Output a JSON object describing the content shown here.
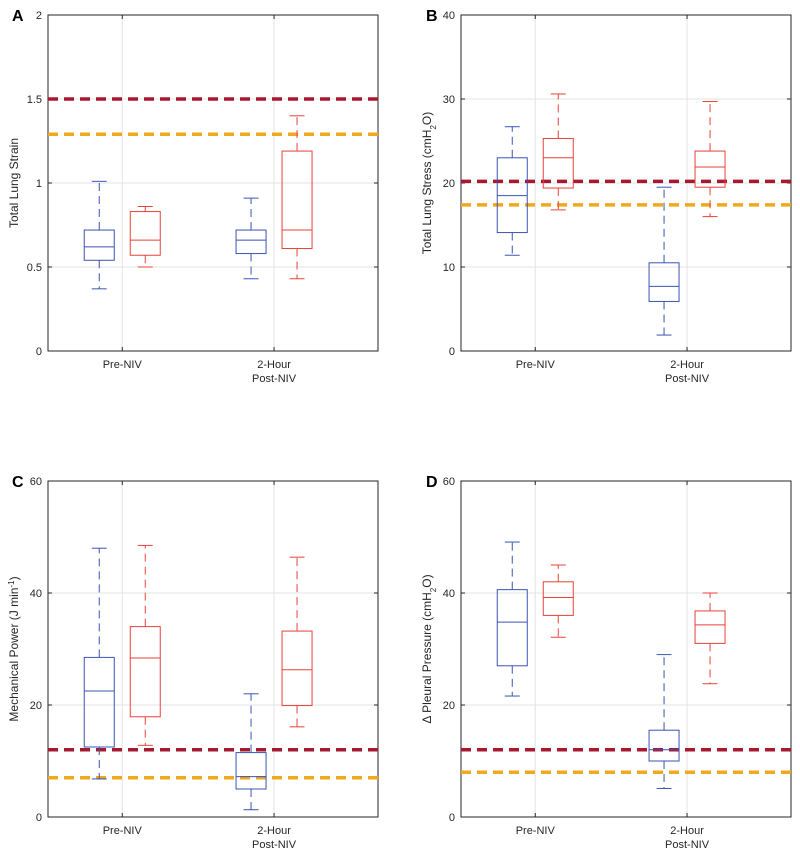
{
  "colors": {
    "series1": "#3a54b4",
    "series2": "#e8423a",
    "ref_high": "#a6192e",
    "ref_low": "#f2a81d",
    "grid": "#e3e3e3",
    "axis": "#262626"
  },
  "chart_data": [
    {
      "panel_label": "A",
      "type": "box",
      "ylabel": "Total Lung Strain",
      "ylim": [
        0,
        2
      ],
      "yticks": [
        "0",
        "0.5",
        "1",
        "1.5",
        "2"
      ],
      "categories": [
        {
          "line1": "Pre-NIV",
          "line2": ""
        },
        {
          "line1": "2-Hour",
          "line2": "Post-NIV"
        }
      ],
      "reference_lines": [
        {
          "value": 1.5,
          "color": "ref_high"
        },
        {
          "value": 1.29,
          "color": "ref_low"
        }
      ],
      "boxes": [
        {
          "cat": 0,
          "series": 1,
          "min": 0.37,
          "q1": 0.54,
          "median": 0.62,
          "q3": 0.72,
          "max": 1.01
        },
        {
          "cat": 0,
          "series": 2,
          "min": 0.5,
          "q1": 0.57,
          "median": 0.66,
          "q3": 0.83,
          "max": 0.86
        },
        {
          "cat": 1,
          "series": 1,
          "min": 0.43,
          "q1": 0.58,
          "median": 0.66,
          "q3": 0.72,
          "max": 0.91
        },
        {
          "cat": 1,
          "series": 2,
          "min": 0.43,
          "q1": 0.61,
          "median": 0.72,
          "q3": 1.19,
          "max": 1.4
        }
      ]
    },
    {
      "panel_label": "B",
      "type": "box",
      "ylabel": "Total Lung Stress (cmH2O)",
      "ylabel_main": "Total Lung Stress (cmH",
      "ylabel_sub": "2",
      "ylabel_tail": "O)",
      "ylim": [
        0,
        40
      ],
      "yticks": [
        "0",
        "10",
        "20",
        "30",
        "40"
      ],
      "categories": [
        {
          "line1": "Pre-NIV",
          "line2": ""
        },
        {
          "line1": "2-Hour",
          "line2": "Post-NIV"
        }
      ],
      "reference_lines": [
        {
          "value": 20.2,
          "color": "ref_high"
        },
        {
          "value": 17.4,
          "color": "ref_low"
        }
      ],
      "boxes": [
        {
          "cat": 0,
          "series": 1,
          "min": 11.4,
          "q1": 14.1,
          "median": 18.5,
          "q3": 23.0,
          "max": 26.7
        },
        {
          "cat": 0,
          "series": 2,
          "min": 16.8,
          "q1": 19.4,
          "median": 23.0,
          "q3": 25.3,
          "max": 30.6
        },
        {
          "cat": 1,
          "series": 1,
          "min": 1.9,
          "q1": 5.9,
          "median": 7.7,
          "q3": 10.5,
          "max": 19.5
        },
        {
          "cat": 1,
          "series": 2,
          "min": 16.0,
          "q1": 19.5,
          "median": 21.9,
          "q3": 23.8,
          "max": 29.7
        }
      ]
    },
    {
      "panel_label": "C",
      "type": "box",
      "ylabel": "Mechanical Power (J min-1)",
      "ylabel_main": "Mechanical Power (J min",
      "ylabel_sup": "-1",
      "ylabel_tail": ")",
      "ylim": [
        0,
        60
      ],
      "yticks": [
        "0",
        "20",
        "40",
        "60"
      ],
      "categories": [
        {
          "line1": "Pre-NIV",
          "line2": ""
        },
        {
          "line1": "2-Hour",
          "line2": "Post-NIV"
        }
      ],
      "reference_lines": [
        {
          "value": 12,
          "color": "ref_high"
        },
        {
          "value": 7,
          "color": "ref_low"
        }
      ],
      "boxes": [
        {
          "cat": 0,
          "series": 1,
          "min": 6.8,
          "q1": 12.5,
          "median": 22.5,
          "q3": 28.5,
          "max": 48.0
        },
        {
          "cat": 0,
          "series": 2,
          "min": 12.8,
          "q1": 17.9,
          "median": 28.4,
          "q3": 34.0,
          "max": 48.5
        },
        {
          "cat": 1,
          "series": 1,
          "min": 1.3,
          "q1": 5.0,
          "median": 7.2,
          "q3": 11.5,
          "max": 22.0
        },
        {
          "cat": 1,
          "series": 2,
          "min": 16.1,
          "q1": 19.9,
          "median": 26.3,
          "q3": 33.2,
          "max": 46.4
        }
      ]
    },
    {
      "panel_label": "D",
      "type": "box",
      "ylabel": "Δ Pleural Pressure (cmH2O)",
      "ylabel_main": "Δ Pleural Pressure (cmH",
      "ylabel_sub": "2",
      "ylabel_tail": "O)",
      "ylim": [
        0,
        60
      ],
      "yticks": [
        "0",
        "20",
        "40",
        "60"
      ],
      "categories": [
        {
          "line1": "Pre-NIV",
          "line2": ""
        },
        {
          "line1": "2-Hour",
          "line2": "Post-NIV"
        }
      ],
      "reference_lines": [
        {
          "value": 12,
          "color": "ref_high"
        },
        {
          "value": 8,
          "color": "ref_low"
        }
      ],
      "boxes": [
        {
          "cat": 0,
          "series": 1,
          "min": 21.6,
          "q1": 27.0,
          "median": 34.8,
          "q3": 40.6,
          "max": 49.1
        },
        {
          "cat": 0,
          "series": 2,
          "min": 32.1,
          "q1": 36.0,
          "median": 39.2,
          "q3": 42.0,
          "max": 45.0
        },
        {
          "cat": 1,
          "series": 1,
          "min": 5.1,
          "q1": 10.0,
          "median": 12.0,
          "q3": 15.5,
          "max": 29.0
        },
        {
          "cat": 1,
          "series": 2,
          "min": 23.8,
          "q1": 31.0,
          "median": 34.3,
          "q3": 36.8,
          "max": 40.0
        }
      ]
    }
  ]
}
